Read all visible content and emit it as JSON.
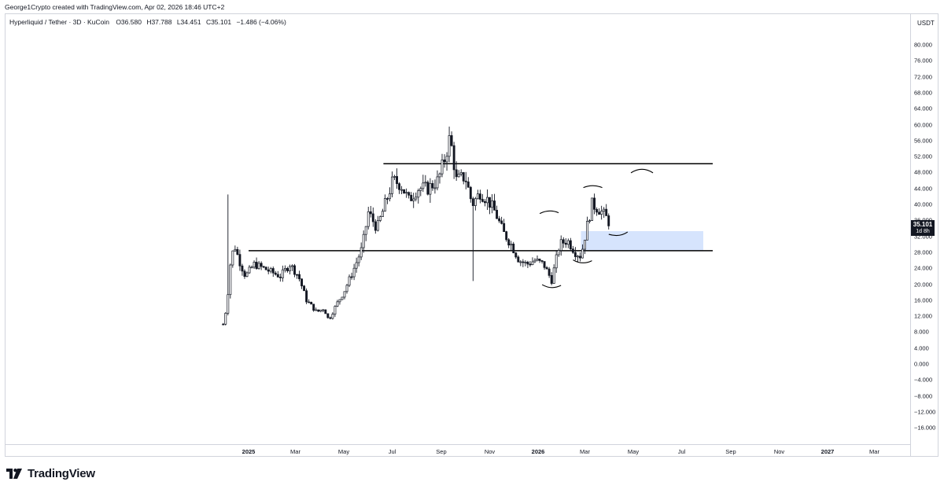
{
  "header": {
    "credit": "George1Crypto created with TradingView.com, Apr 02, 2026 18:46 UTC+2"
  },
  "legend": {
    "symbol": "Hyperliquid / Tether · 3D · KuCoin",
    "open": "O36.580",
    "high": "H37.788",
    "low": "L34.451",
    "close": "C35.101",
    "change": "−1.486 (−4.06%)"
  },
  "price_axis": {
    "unit": "USDT",
    "ticks": [
      "80.000",
      "76.000",
      "72.000",
      "68.000",
      "64.000",
      "60.000",
      "56.000",
      "52.000",
      "48.000",
      "44.000",
      "40.000",
      "36.000",
      "32.000",
      "28.000",
      "24.000",
      "20.000",
      "16.000",
      "12.000",
      "8.000",
      "4.000",
      "0.000",
      "−4.000",
      "−8.000",
      "−12.000",
      "−16.000"
    ],
    "last_price": "35.101",
    "last_price_countdown": "1d 8h"
  },
  "time_axis": {
    "ticks": [
      {
        "label": "2025",
        "bold": true
      },
      {
        "label": "Mar",
        "bold": false
      },
      {
        "label": "May",
        "bold": false
      },
      {
        "label": "Jul",
        "bold": false
      },
      {
        "label": "Sep",
        "bold": false
      },
      {
        "label": "Nov",
        "bold": false
      },
      {
        "label": "2026",
        "bold": true
      },
      {
        "label": "Mar",
        "bold": false
      },
      {
        "label": "May",
        "bold": false
      },
      {
        "label": "Jul",
        "bold": false
      },
      {
        "label": "Sep",
        "bold": false
      },
      {
        "label": "Nov",
        "bold": false
      },
      {
        "label": "2027",
        "bold": true
      },
      {
        "label": "Mar",
        "bold": false
      }
    ]
  },
  "footer": {
    "logo_text": "TradingView",
    "logo_icon": "tradingview-logo-icon"
  },
  "colors": {
    "candle": "#131722",
    "level_line": "#000000",
    "zone_fill": "#d6e4fd",
    "axis": "#d1d4dc",
    "badge_bg": "#131722"
  },
  "chart_data": {
    "type": "candlestick",
    "ylim": [
      -18,
      84
    ],
    "horizontal_levels": [
      50.2,
      28.4
    ],
    "support_zone": [
      28.4,
      33.3
    ],
    "price_path": [
      {
        "d": "2024-11-30",
        "p": 10
      },
      {
        "d": "2024-12-05",
        "p": 15
      },
      {
        "d": "2024-12-08",
        "p": 24
      },
      {
        "d": "2024-12-14",
        "p": 30
      },
      {
        "d": "2024-12-20",
        "p": 26
      },
      {
        "d": "2024-12-28",
        "p": 22
      },
      {
        "d": "2025-01-08",
        "p": 25
      },
      {
        "d": "2025-01-20",
        "p": 24
      },
      {
        "d": "2025-01-30",
        "p": 23
      },
      {
        "d": "2025-02-10",
        "p": 22
      },
      {
        "d": "2025-02-22",
        "p": 25
      },
      {
        "d": "2025-03-05",
        "p": 22
      },
      {
        "d": "2025-03-15",
        "p": 16
      },
      {
        "d": "2025-03-28",
        "p": 13
      },
      {
        "d": "2025-04-06",
        "p": 14
      },
      {
        "d": "2025-04-12",
        "p": 11
      },
      {
        "d": "2025-04-22",
        "p": 15
      },
      {
        "d": "2025-05-01",
        "p": 18
      },
      {
        "d": "2025-05-12",
        "p": 23
      },
      {
        "d": "2025-05-24",
        "p": 29
      },
      {
        "d": "2025-06-01",
        "p": 38
      },
      {
        "d": "2025-06-12",
        "p": 34
      },
      {
        "d": "2025-06-22",
        "p": 40
      },
      {
        "d": "2025-07-02",
        "p": 46
      },
      {
        "d": "2025-07-12",
        "p": 45
      },
      {
        "d": "2025-07-22",
        "p": 41
      },
      {
        "d": "2025-08-02",
        "p": 44
      },
      {
        "d": "2025-08-15",
        "p": 44
      },
      {
        "d": "2025-08-28",
        "p": 46
      },
      {
        "d": "2025-09-06",
        "p": 52
      },
      {
        "d": "2025-09-12",
        "p": 57
      },
      {
        "d": "2025-09-20",
        "p": 46
      },
      {
        "d": "2025-10-01",
        "p": 47
      },
      {
        "d": "2025-10-10",
        "p": 40
      },
      {
        "d": "2025-10-20",
        "p": 43
      },
      {
        "d": "2025-10-30",
        "p": 41
      },
      {
        "d": "2025-11-08",
        "p": 38
      },
      {
        "d": "2025-11-18",
        "p": 33
      },
      {
        "d": "2025-11-28",
        "p": 30
      },
      {
        "d": "2025-12-08",
        "p": 26
      },
      {
        "d": "2025-12-18",
        "p": 25
      },
      {
        "d": "2025-12-28",
        "p": 26
      },
      {
        "d": "2026-01-08",
        "p": 25
      },
      {
        "d": "2026-01-18",
        "p": 21
      },
      {
        "d": "2026-01-28",
        "p": 30
      },
      {
        "d": "2026-02-07",
        "p": 31
      },
      {
        "d": "2026-02-17",
        "p": 28
      },
      {
        "d": "2026-02-24",
        "p": 27
      },
      {
        "d": "2026-03-02",
        "p": 33
      },
      {
        "d": "2026-03-10",
        "p": 40
      },
      {
        "d": "2026-03-18",
        "p": 39
      },
      {
        "d": "2026-03-27",
        "p": 37
      },
      {
        "d": "2026-04-02",
        "p": 35
      }
    ]
  }
}
